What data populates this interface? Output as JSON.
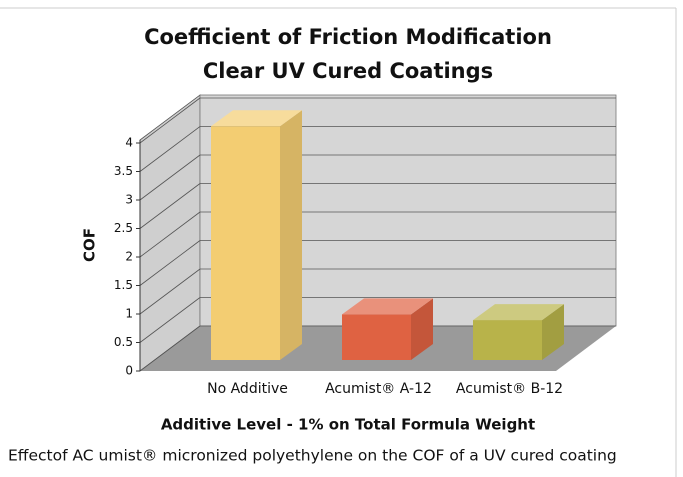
{
  "chart_data": {
    "type": "bar3d",
    "title": [
      "Coefficient of Friction Modification",
      "Clear UV Cured Coatings"
    ],
    "ylabel": "COF",
    "xlabel": "Additive Level - 1% on Total Formula Weight",
    "caption": "Effectof AC umist® micronized polyethylene on the COF of a UV cured coating",
    "categories": [
      "No Additive",
      "Acumist® A-12",
      "Acumist® B-12"
    ],
    "values": [
      4.1,
      0.8,
      0.7
    ],
    "colors": [
      "#f3cd72",
      "#df6242",
      "#b8b34a"
    ],
    "ylim": [
      0,
      4
    ],
    "yticks": [
      0,
      0.5,
      1,
      1.5,
      2,
      2.5,
      3,
      3.5,
      4
    ],
    "grid": true
  }
}
